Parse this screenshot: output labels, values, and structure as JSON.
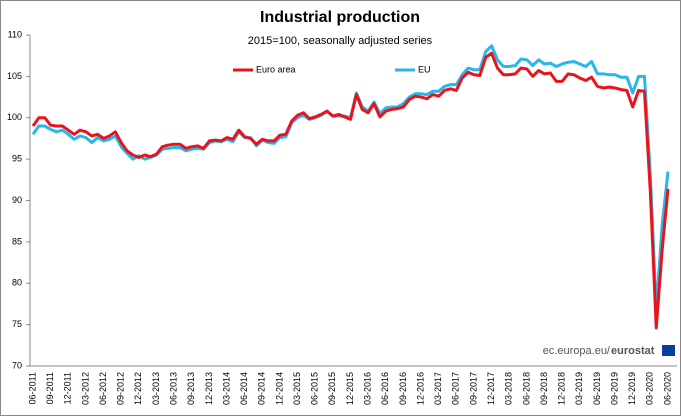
{
  "chart_data": {
    "type": "line",
    "title": "Industrial production",
    "subtitle": "2015=100, seasonally adjusted series",
    "source": {
      "site": "ec.europa.eu/",
      "brand": "eurostat"
    },
    "categories": [
      "06-2011",
      null,
      null,
      "09-2011",
      null,
      null,
      "12-2011",
      null,
      null,
      "03-2012",
      null,
      null,
      "06-2012",
      null,
      null,
      "09-2012",
      null,
      null,
      "12-2012",
      null,
      null,
      "03-2013",
      null,
      null,
      "06-2013",
      null,
      null,
      "09-2013",
      null,
      null,
      "12-2013",
      null,
      null,
      "03-2014",
      null,
      null,
      "06-2014",
      null,
      null,
      "09-2014",
      null,
      null,
      "12-2014",
      null,
      null,
      "03-2015",
      null,
      null,
      "06-2015",
      null,
      null,
      "09-2015",
      null,
      null,
      "12-2015",
      null,
      null,
      "03-2016",
      null,
      null,
      "06-2016",
      null,
      null,
      "09-2016",
      null,
      null,
      "12-2016",
      null,
      null,
      "03-2017",
      null,
      null,
      "06-2017",
      null,
      null,
      "09-2017",
      null,
      null,
      "12-2017",
      null,
      null,
      "03-2018",
      null,
      null,
      "06-2018",
      null,
      null,
      "09-2018",
      null,
      null,
      "12-2018",
      null,
      null,
      "03-2019",
      null,
      null,
      "06-2019",
      null,
      null,
      "09-2019",
      null,
      null,
      "12-2019",
      null,
      null,
      "03-2020",
      null,
      null,
      "06-2020"
    ],
    "series": [
      {
        "name": "EU",
        "color": "#29b6ea",
        "values": [
          98,
          99,
          99,
          98.6,
          98.3,
          98.5,
          98,
          97.4,
          97.8,
          97.6,
          97,
          97.6,
          97.2,
          97.4,
          97.8,
          96.5,
          95.7,
          95,
          95.4,
          95,
          95.2,
          95.5,
          96.2,
          96.3,
          96.4,
          96.4,
          96,
          96.2,
          96.3,
          96.2,
          97,
          97.2,
          97.1,
          97.4,
          97.1,
          98.3,
          97.6,
          97.6,
          96.6,
          97.3,
          97,
          96.9,
          97.6,
          97.7,
          99.4,
          100,
          100.3,
          99.8,
          100,
          100.3,
          100.8,
          100.2,
          100.2,
          100.2,
          100,
          103,
          101.3,
          100.8,
          101.9,
          100.5,
          101.2,
          101.3,
          101.3,
          101.7,
          102.5,
          102.9,
          102.9,
          102.8,
          103.2,
          103.2,
          103.8,
          104,
          104,
          105.2,
          106,
          105.8,
          105.8,
          108,
          108.7,
          107,
          106.2,
          106.2,
          106.3,
          107.1,
          107,
          106.3,
          107,
          106.5,
          106.6,
          106.2,
          106.5,
          106.7,
          106.8,
          106.5,
          106.2,
          106.8,
          105.3,
          105.3,
          105.2,
          105.2,
          104.9,
          104.9,
          103,
          105,
          105,
          93,
          76.7,
          87,
          93.5
        ]
      },
      {
        "name": "Euro area",
        "color": "#e8141b",
        "values": [
          99,
          100,
          100,
          99.1,
          99,
          99,
          98.5,
          98,
          98.5,
          98.3,
          97.8,
          98,
          97.5,
          97.8,
          98.3,
          97,
          96,
          95.5,
          95.2,
          95.5,
          95.3,
          95.6,
          96.5,
          96.7,
          96.8,
          96.8,
          96.3,
          96.5,
          96.6,
          96.3,
          97.2,
          97.3,
          97.2,
          97.6,
          97.4,
          98.5,
          97.7,
          97.5,
          96.8,
          97.4,
          97.2,
          97.2,
          97.9,
          98,
          99.6,
          100.3,
          100.6,
          99.9,
          100.1,
          100.4,
          100.8,
          100.2,
          100.4,
          100.1,
          99.8,
          102.8,
          101,
          100.6,
          101.7,
          100.1,
          100.8,
          101,
          101.1,
          101.3,
          102.2,
          102.6,
          102.5,
          102.3,
          102.8,
          102.6,
          103.3,
          103.5,
          103.3,
          104.8,
          105.5,
          105.2,
          105.1,
          107.3,
          107.8,
          106,
          105.2,
          105.2,
          105.3,
          106,
          105.9,
          105,
          105.7,
          105.3,
          105.4,
          104.4,
          104.4,
          105.3,
          105.2,
          104.8,
          104.5,
          104.9,
          103.8,
          103.6,
          103.7,
          103.6,
          103.4,
          103.3,
          101.3,
          103.3,
          103.2,
          91,
          74.6,
          84,
          91.4
        ]
      }
    ],
    "ylim": [
      70,
      110
    ],
    "yticks": [
      70,
      75,
      80,
      85,
      90,
      95,
      100,
      105,
      110
    ],
    "grid": false
  }
}
